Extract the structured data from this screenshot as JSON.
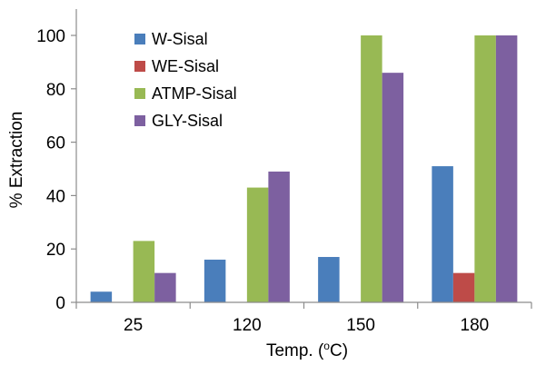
{
  "chart_data": {
    "type": "bar",
    "categories": [
      "25",
      "120",
      "150",
      "180"
    ],
    "series": [
      {
        "name": "W-Sisal",
        "values": [
          4,
          16,
          17,
          51
        ],
        "color": "#4a7ebb"
      },
      {
        "name": "WE-Sisal",
        "values": [
          0,
          0,
          0,
          11
        ],
        "color": "#be4b48"
      },
      {
        "name": "ATMP-Sisal",
        "values": [
          23,
          43,
          100,
          100
        ],
        "color": "#98b954"
      },
      {
        "name": "GLY-Sisal",
        "values": [
          11,
          49,
          86,
          100
        ],
        "color": "#7d60a0"
      }
    ],
    "ylabel": "% Extraction",
    "xlabel_main": "Temp. (",
    "xlabel_sup": "o",
    "xlabel_end": "C)",
    "ylim": [
      0,
      100
    ],
    "yticks": [
      "0",
      "20",
      "40",
      "60",
      "80",
      "100"
    ],
    "grid": false,
    "legend": "top-left inside plot"
  }
}
